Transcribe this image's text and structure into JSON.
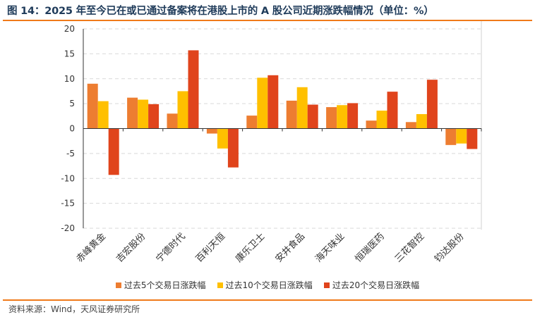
{
  "header": {
    "title": "图 14：2025 年至今已在或已通过备案将在港股上市的 A 股公司近期涨跌幅情况（单位：%）"
  },
  "footer": {
    "source": "资料来源：Wind，天风证券研究所"
  },
  "colors": {
    "accent": "#f07a1a",
    "title": "#1f3b5a",
    "grid": "#d9d9d9"
  },
  "chart_data": {
    "type": "bar",
    "title": "",
    "xlabel": "",
    "ylabel": "",
    "ylim": [
      -20,
      20
    ],
    "yticks": [
      20,
      15,
      10,
      5,
      0,
      -5,
      -10,
      -15,
      -20
    ],
    "grid": true,
    "legend_position": "bottom",
    "categories": [
      "赤峰黄金",
      "吉宏股份",
      "宁德时代",
      "百利天恒",
      "康乐卫士",
      "安井食品",
      "海天味业",
      "恒瑞医药",
      "三花智控",
      "钧达股份"
    ],
    "series": [
      {
        "name": "过去5个交易日涨跌幅",
        "color": "#ed7d31",
        "values": [
          9.0,
          6.2,
          3.0,
          -1.0,
          2.6,
          5.6,
          4.3,
          1.6,
          1.3,
          -3.3
        ]
      },
      {
        "name": "过去10个交易日涨跌幅",
        "color": "#ffc000",
        "values": [
          5.5,
          5.8,
          7.5,
          -4.0,
          10.2,
          8.3,
          4.7,
          3.6,
          2.9,
          -3.0
        ]
      },
      {
        "name": "过去20个交易日涨跌幅",
        "color": "#e0441c",
        "values": [
          -9.3,
          4.9,
          15.7,
          -7.8,
          10.7,
          4.8,
          5.1,
          7.4,
          9.8,
          -4.1
        ]
      }
    ]
  }
}
